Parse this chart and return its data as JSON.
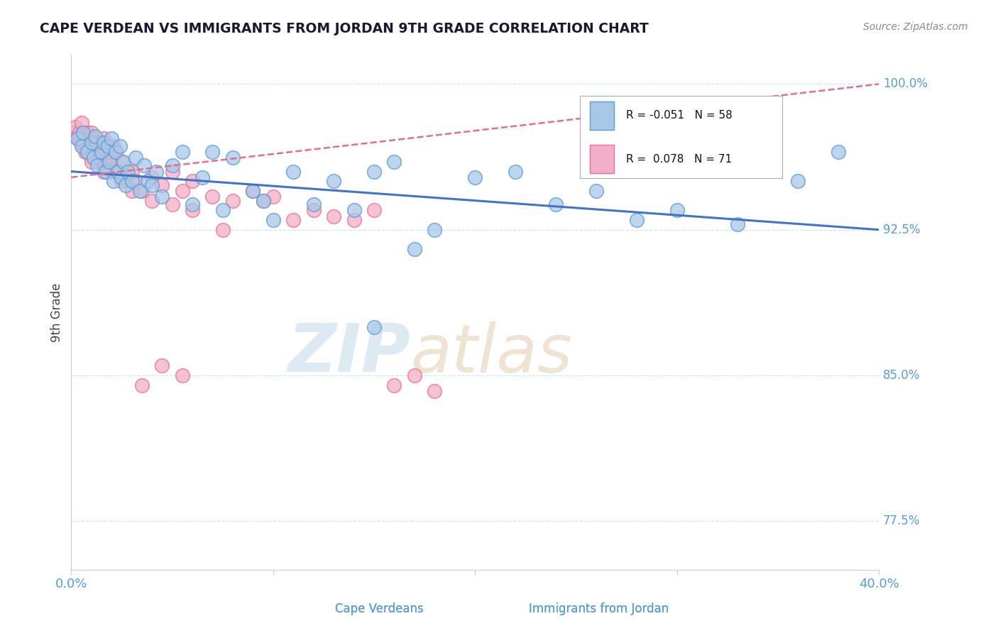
{
  "title": "CAPE VERDEAN VS IMMIGRANTS FROM JORDAN 9TH GRADE CORRELATION CHART",
  "source_text": "Source: ZipAtlas.com",
  "yaxis_label": "9th Grade",
  "legend_blue_r": "-0.051",
  "legend_blue_n": "58",
  "legend_pink_r": "0.078",
  "legend_pink_n": "71",
  "blue_color": "#a8c8e8",
  "pink_color": "#f4afc8",
  "blue_edge_color": "#5b9bd5",
  "pink_edge_color": "#e87090",
  "blue_line_color": "#4472c4",
  "pink_line_color": "#e07090",
  "axis_color": "#5b9bd5",
  "grid_color": "#d0e4f0",
  "watermark_zip_color": "#d0e4f0",
  "watermark_atlas_color": "#e8d0b8",
  "blue_trend_x0": 0.0,
  "blue_trend_y0": 95.5,
  "blue_trend_x1": 40.0,
  "blue_trend_y1": 92.5,
  "pink_trend_x0": 0.0,
  "pink_trend_y0": 95.2,
  "pink_trend_x1": 40.0,
  "pink_trend_y1": 100.0,
  "xlim": [
    0.0,
    40.0
  ],
  "ylim": [
    75.0,
    101.5
  ],
  "blue_scatter_x": [
    0.3,
    0.5,
    0.6,
    0.8,
    1.0,
    1.1,
    1.2,
    1.3,
    1.5,
    1.6,
    1.7,
    1.8,
    1.9,
    2.0,
    2.1,
    2.2,
    2.3,
    2.4,
    2.5,
    2.6,
    2.7,
    2.8,
    3.0,
    3.2,
    3.4,
    3.6,
    3.8,
    4.0,
    4.2,
    4.5,
    5.0,
    5.5,
    6.0,
    6.5,
    7.0,
    7.5,
    8.0,
    9.0,
    10.0,
    11.0,
    12.0,
    13.0,
    14.0,
    15.0,
    16.0,
    17.0,
    18.0,
    20.0,
    22.0,
    24.0,
    26.0,
    28.0,
    30.0,
    33.0,
    36.0,
    38.0,
    9.5,
    15.0
  ],
  "blue_scatter_y": [
    97.2,
    96.8,
    97.5,
    96.5,
    97.0,
    96.2,
    97.3,
    95.8,
    96.5,
    97.0,
    95.5,
    96.8,
    96.0,
    97.2,
    95.0,
    96.5,
    95.5,
    96.8,
    95.2,
    96.0,
    94.8,
    95.5,
    95.0,
    96.2,
    94.5,
    95.8,
    95.0,
    94.8,
    95.5,
    94.2,
    95.8,
    96.5,
    93.8,
    95.2,
    96.5,
    93.5,
    96.2,
    94.5,
    93.0,
    95.5,
    93.8,
    95.0,
    93.5,
    95.5,
    96.0,
    91.5,
    92.5,
    95.2,
    95.5,
    93.8,
    94.5,
    93.0,
    93.5,
    92.8,
    95.0,
    96.5,
    94.0,
    87.5
  ],
  "pink_scatter_x": [
    0.1,
    0.2,
    0.3,
    0.4,
    0.5,
    0.5,
    0.6,
    0.6,
    0.7,
    0.8,
    0.8,
    0.9,
    1.0,
    1.0,
    1.1,
    1.1,
    1.2,
    1.2,
    1.3,
    1.3,
    1.4,
    1.5,
    1.5,
    1.6,
    1.6,
    1.7,
    1.8,
    1.9,
    2.0,
    2.0,
    2.1,
    2.2,
    2.3,
    2.5,
    2.7,
    3.0,
    3.2,
    3.5,
    4.0,
    4.5,
    5.0,
    5.5,
    6.0,
    7.0,
    8.0,
    9.0,
    10.0,
    11.0,
    12.0,
    13.0,
    14.0,
    15.0,
    16.0,
    17.0,
    18.0,
    0.4,
    0.7,
    1.0,
    1.3,
    1.6,
    2.0,
    2.5,
    3.0,
    4.0,
    5.0,
    6.0,
    7.5,
    9.5,
    3.5,
    4.5,
    5.5
  ],
  "pink_scatter_y": [
    97.5,
    97.8,
    97.2,
    97.5,
    97.0,
    98.0,
    97.5,
    96.8,
    97.2,
    97.5,
    96.5,
    97.0,
    97.5,
    96.2,
    97.0,
    96.5,
    97.2,
    96.8,
    97.0,
    96.0,
    96.5,
    97.0,
    96.0,
    96.5,
    97.2,
    95.8,
    96.0,
    96.5,
    96.2,
    95.5,
    96.8,
    96.5,
    95.5,
    96.0,
    95.2,
    95.5,
    95.0,
    94.5,
    95.2,
    94.8,
    95.5,
    94.5,
    95.0,
    94.2,
    94.0,
    94.5,
    94.2,
    93.0,
    93.5,
    93.2,
    93.0,
    93.5,
    84.5,
    85.0,
    84.2,
    97.2,
    96.5,
    96.0,
    97.0,
    95.5,
    96.5,
    95.0,
    94.5,
    94.0,
    93.8,
    93.5,
    92.5,
    94.0,
    84.5,
    85.5,
    85.0
  ]
}
